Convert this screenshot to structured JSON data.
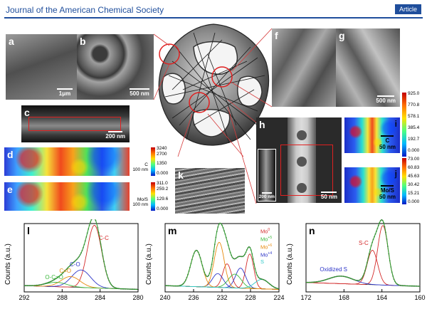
{
  "header": {
    "journal": "Journal of the American Chemical Society",
    "badge": "Article"
  },
  "panels": {
    "a": {
      "label": "a",
      "scale": "1μm"
    },
    "b": {
      "label": "b",
      "scale": "500 nm"
    },
    "c": {
      "label": "c",
      "scale": "200 nm"
    },
    "d": {
      "label": "d",
      "map_label": [
        "C",
        "100 nm"
      ],
      "ticks": [
        "3240",
        "2700",
        "1350",
        "0.000"
      ]
    },
    "e": {
      "label": "e",
      "map_label": [
        "Mo/S",
        "100 nm"
      ],
      "ticks": [
        "311.0",
        "259.2",
        "129.6",
        "0.000"
      ]
    },
    "f": {
      "label": "f"
    },
    "g": {
      "label": "g",
      "scale": "500 nm"
    },
    "h": {
      "label": "h",
      "scale_inset": "200 nm",
      "scale": "50 nm"
    },
    "i": {
      "label": "i",
      "map_label": [
        "C",
        "50 nm"
      ],
      "ticks": [
        "925.0",
        "770.8",
        "578.1",
        "385.4",
        "192.7",
        "0.000"
      ]
    },
    "j": {
      "label": "j",
      "map_label": [
        "Mo/S",
        "50 nm"
      ],
      "ticks": [
        "73.00",
        "60.83",
        "45.63",
        "30.42",
        "15.21",
        "0.000"
      ]
    },
    "k": {
      "label": "k"
    }
  },
  "colors": {
    "journal_blue": "#1f4e9c",
    "fit_line": "#2f9e2f",
    "data_points": "#555555"
  },
  "chart_data": [
    {
      "type": "line",
      "panel": "l",
      "ylabel": "Counts (a.u.)",
      "x_ticks": [
        "292",
        "288",
        "284",
        "280"
      ],
      "xlim": [
        292,
        280
      ],
      "peaks": [
        {
          "name": "C-C",
          "color": "#d42b2b",
          "center": 284.6,
          "height": 1.0,
          "width": 0.75
        },
        {
          "name": "C-O",
          "color": "#2e36c8",
          "center": 286.0,
          "height": 0.28,
          "width": 1.0
        },
        {
          "name": "C=O",
          "color": "#e88a0e",
          "center": 287.1,
          "height": 0.17,
          "width": 1.0
        },
        {
          "name": "O-C=O",
          "color": "#3db83d",
          "center": 288.6,
          "height": 0.07,
          "width": 1.1
        }
      ]
    },
    {
      "type": "line",
      "panel": "m",
      "ylabel": "Counts (a.u.)",
      "x_ticks": [
        "240",
        "236",
        "232",
        "228",
        "224"
      ],
      "xlim": [
        240,
        224
      ],
      "peaks": [
        {
          "name": "Mo0",
          "color": "#d42b2b",
          "center": 228.1,
          "height": 0.55,
          "width": 0.55
        },
        {
          "name": "Mo0",
          "color": "#d42b2b",
          "center": 231.3,
          "height": 0.38,
          "width": 0.6
        },
        {
          "name": "Mo+4",
          "color": "#2e36c8",
          "center": 229.4,
          "height": 0.32,
          "width": 0.7
        },
        {
          "name": "Mo+4",
          "color": "#2e36c8",
          "center": 232.6,
          "height": 0.22,
          "width": 0.75
        },
        {
          "name": "Mo+5",
          "color": "#3db83d",
          "center": 230.2,
          "height": 0.22,
          "width": 0.9
        },
        {
          "name": "Mo+6",
          "color": "#e88a0e",
          "center": 235.6,
          "height": 0.58,
          "width": 0.8
        },
        {
          "name": "Mo+6",
          "color": "#e88a0e",
          "center": 232.4,
          "height": 0.72,
          "width": 0.7
        },
        {
          "name": "S",
          "color": "#2ec8c8",
          "center": 226.4,
          "height": 0.15,
          "width": 1.0
        }
      ],
      "legend": [
        {
          "base": "Mo",
          "sup": "0",
          "color": "#d42b2b"
        },
        {
          "base": "Mo",
          "sup": "+5",
          "color": "#3db83d"
        },
        {
          "base": "Mo",
          "sup": "+6",
          "color": "#e88a0e"
        },
        {
          "base": "Mo",
          "sup": "+4",
          "color": "#2e36c8"
        },
        {
          "base": "S",
          "sup": "",
          "color": "#2ec8c8"
        }
      ]
    },
    {
      "type": "line",
      "panel": "n",
      "ylabel": "Counts (a.u.)",
      "x_ticks": [
        "172",
        "168",
        "164",
        "160"
      ],
      "xlim": [
        172,
        160
      ],
      "peaks": [
        {
          "name": "S-C",
          "color": "#d42b2b",
          "center": 163.9,
          "height": 0.95,
          "width": 0.55
        },
        {
          "name": "S-C",
          "color": "#d42b2b",
          "center": 165.0,
          "height": 0.55,
          "width": 0.55
        },
        {
          "name": "Oxidized S",
          "color": "#2e36c8",
          "center": 168.3,
          "height": 0.12,
          "width": 1.3
        }
      ]
    }
  ]
}
